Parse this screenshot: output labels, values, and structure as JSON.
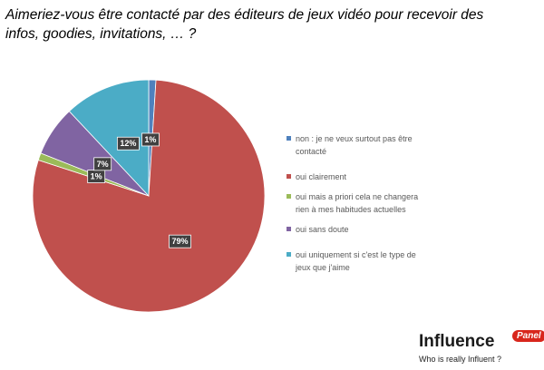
{
  "chart_data": {
    "type": "pie",
    "title": "Aimeriez-vous être contacté par des éditeurs de jeux vidéo pour recevoir des infos, goodies, invitations, … ?",
    "categories": [
      "non : je ne veux surtout pas être contacté",
      "oui clairement",
      "oui mais a priori cela ne changera rien à mes habitudes actuelles",
      "oui sans doute",
      "oui uniquement si c'est le type de jeux que j'aime"
    ],
    "values": [
      1,
      79,
      1,
      7,
      12
    ],
    "value_labels": [
      "1%",
      "79%",
      "1%",
      "7%",
      "12%"
    ],
    "colors": [
      "#4f81bd",
      "#c0504d",
      "#9bbb59",
      "#8064a2",
      "#4bacc6"
    ],
    "legend": "right"
  },
  "logo": {
    "name": "Influence",
    "badge": "Panel",
    "tagline": "Who is really Influent ?"
  }
}
